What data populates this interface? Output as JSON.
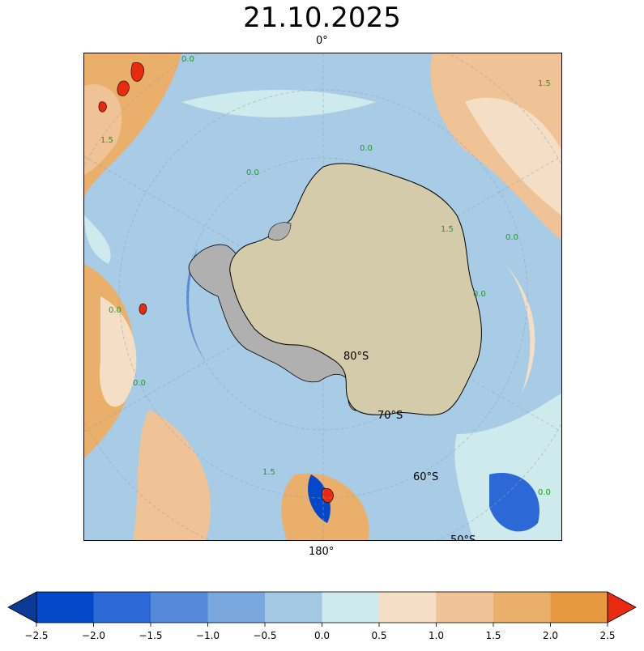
{
  "title": "21.10.2025",
  "map": {
    "projection": "south-polar-stereographic",
    "top_longitude_label": "0°",
    "bottom_longitude_label": "180°",
    "latitude_labels": [
      "80°S",
      "70°S",
      "60°S",
      "50°S"
    ],
    "land_color": "#d4cbab",
    "ice_shelf_color": "#b0b0b0",
    "contour_line_label_color": "#1a9e1a",
    "contour_labels": [
      "0.0",
      "1.5",
      "0.0",
      "1.5",
      "0.0",
      "0.0",
      "0.0",
      "1.5",
      "0.0",
      "0.0",
      "1.5",
      "0.0"
    ]
  },
  "colorbar": {
    "ticks": [
      "−2.5",
      "−2.0",
      "−1.5",
      "−1.0",
      "−0.5",
      "0.0",
      "0.5",
      "1.0",
      "1.5",
      "2.0",
      "2.5"
    ],
    "colors": [
      "#0447c9",
      "#2c68d6",
      "#5589d9",
      "#7aa8de",
      "#a3c8e3",
      "#cfeaec",
      "#f4dfc6",
      "#f0c396",
      "#eaaf6b",
      "#e7993f"
    ],
    "under_color": "#0a3a96",
    "over_color": "#e82a10"
  }
}
